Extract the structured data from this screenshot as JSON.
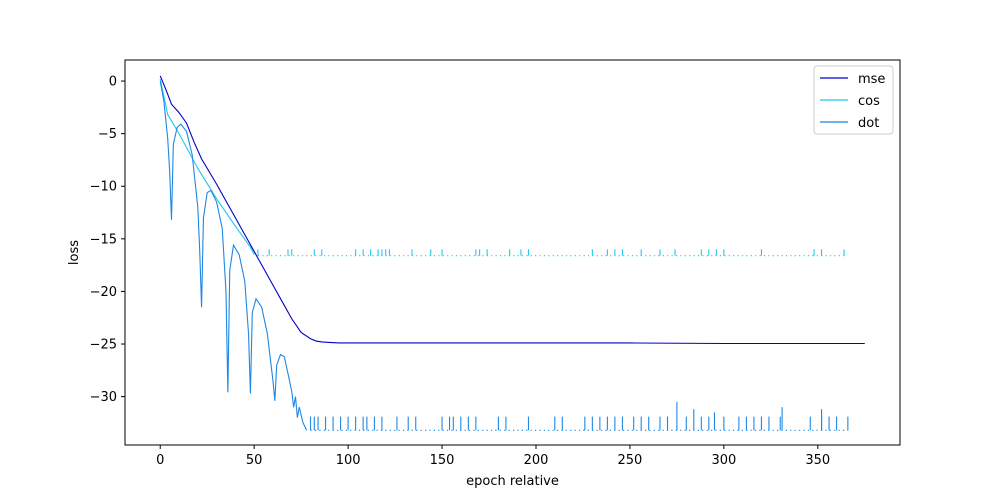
{
  "chart_data": {
    "type": "line",
    "title": "",
    "xlabel": "epoch relative",
    "ylabel": "loss",
    "xlim": [
      -18.75,
      393.75
    ],
    "ylim": [
      -34.6,
      2.0
    ],
    "xticks": [
      0,
      50,
      100,
      150,
      200,
      250,
      300,
      350
    ],
    "yticks": [
      0,
      -5,
      -10,
      -15,
      -20,
      -25,
      -30
    ],
    "grid": false,
    "legend_position": "top-right",
    "series": [
      {
        "name": "mse",
        "color": "#0000cc",
        "x": [
          0,
          3,
          6,
          10,
          14,
          18,
          22,
          26,
          30,
          35,
          40,
          45,
          50,
          55,
          60,
          65,
          70,
          75,
          80,
          83,
          86,
          90,
          95,
          100,
          150,
          200,
          250,
          300,
          350,
          375
        ],
        "y": [
          0.5,
          -0.8,
          -2.2,
          -3.0,
          -4.0,
          -5.8,
          -7.4,
          -8.6,
          -9.8,
          -11.4,
          -13.0,
          -14.6,
          -16.2,
          -17.8,
          -19.4,
          -21.0,
          -22.6,
          -23.9,
          -24.5,
          -24.72,
          -24.8,
          -24.85,
          -24.9,
          -24.9,
          -24.9,
          -24.9,
          -24.9,
          -24.95,
          -24.95,
          -24.95
        ]
      },
      {
        "name": "cos",
        "color": "#1ec8f0",
        "x": [
          0,
          4,
          10,
          20,
          30,
          40,
          48,
          50
        ],
        "y": [
          0.2,
          -3.2,
          -5.0,
          -8.3,
          -11.2,
          -13.8,
          -15.8,
          -16.5
        ],
        "baseline": -16.6,
        "spike_top": -16.0,
        "spike_x": [
          52,
          58,
          68,
          70,
          82,
          86,
          104,
          108,
          112,
          116,
          118,
          120,
          122,
          134,
          144,
          150,
          168,
          170,
          174,
          186,
          192,
          196,
          230,
          238,
          242,
          246,
          256,
          266,
          274,
          288,
          292,
          296,
          300,
          320,
          348,
          352,
          364
        ]
      },
      {
        "name": "dot",
        "color": "#1e88e5",
        "x": [
          0,
          2,
          4,
          5,
          6,
          7,
          9,
          11,
          14,
          17,
          20,
          21,
          22,
          23,
          25,
          27,
          30,
          33,
          35,
          36,
          37,
          39,
          42,
          45,
          47,
          48,
          49,
          51,
          54,
          57,
          60,
          61,
          62,
          64,
          66,
          68,
          70,
          71,
          72,
          73,
          74,
          76,
          78
        ],
        "y": [
          0,
          -2.0,
          -5.5,
          -8.5,
          -13.2,
          -6.0,
          -4.4,
          -4.1,
          -4.8,
          -7.0,
          -12.0,
          -16.0,
          -21.5,
          -13.0,
          -10.6,
          -10.4,
          -11.5,
          -14.0,
          -20.0,
          -29.6,
          -18.0,
          -15.6,
          -16.5,
          -19.0,
          -24.0,
          -29.7,
          -22.0,
          -20.7,
          -21.5,
          -24.0,
          -28.5,
          -30.4,
          -27.0,
          -26.0,
          -26.2,
          -27.8,
          -29.5,
          -31.0,
          -30.0,
          -32.0,
          -31.0,
          -32.5,
          -33.2
        ],
        "baseline": -33.2,
        "spike_top": -31.9,
        "spike_x": [
          80,
          82,
          84,
          88,
          92,
          96,
          100,
          104,
          108,
          110,
          114,
          118,
          126,
          132,
          136,
          150,
          154,
          156,
          160,
          164,
          168,
          180,
          184,
          196,
          210,
          214,
          226,
          230,
          234,
          238,
          242,
          246,
          252,
          256,
          260,
          266,
          270,
          280,
          288,
          292,
          300,
          308,
          312,
          316,
          320,
          324,
          330,
          346,
          352,
          356,
          360,
          366
        ],
        "big_spikes": [
          [
            275,
            -30.5
          ],
          [
            284,
            -31.2
          ],
          [
            295,
            -31.5
          ],
          [
            331,
            -31.0
          ],
          [
            352,
            -31.2
          ]
        ]
      }
    ]
  }
}
